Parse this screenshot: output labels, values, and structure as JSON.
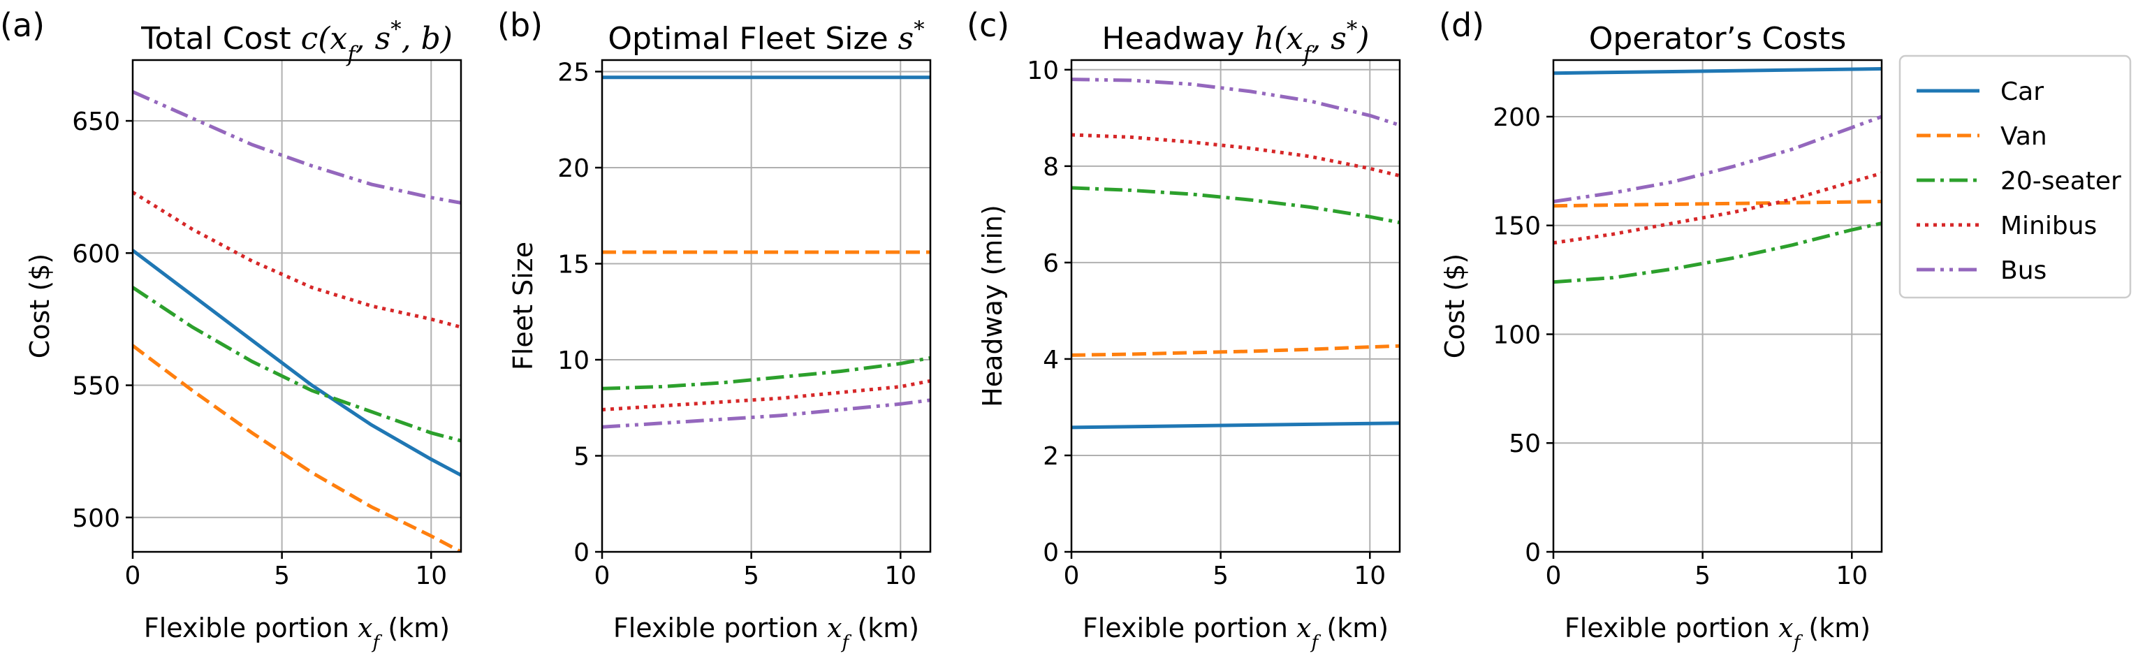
{
  "legend": {
    "placement": "right",
    "entries": [
      {
        "name": "Car",
        "color": "#1f77b4",
        "dash": "solid"
      },
      {
        "name": "Van",
        "color": "#ff7f0e",
        "dash": "dashed"
      },
      {
        "name": "20-seater",
        "color": "#2ca02c",
        "dash": "dashdot"
      },
      {
        "name": "Minibus",
        "color": "#d62728",
        "dash": "dotted"
      },
      {
        "name": "Bus",
        "color": "#9467bd",
        "dash": "dashdotdot"
      }
    ]
  },
  "chart_data": [
    {
      "type": "line",
      "panel": "(a)",
      "title_text": "Total Cost ",
      "title_math": "c(x_f, s*, b)",
      "xlabel_text": "Flexible portion ",
      "xlabel_math": "x_f",
      "xlabel_unit": " (km)",
      "ylabel": "Cost ($)",
      "xlim": [
        0,
        11
      ],
      "ylim": [
        487,
        673
      ],
      "xticks": [
        0,
        5,
        10
      ],
      "yticks": [
        500,
        550,
        600,
        650
      ],
      "grid": true,
      "series": [
        {
          "name": "Car",
          "x": [
            0,
            2,
            4,
            6,
            8,
            10,
            11
          ],
          "values": [
            601,
            584,
            567,
            550,
            535,
            522,
            516
          ]
        },
        {
          "name": "Van",
          "x": [
            0,
            2,
            4,
            6,
            8,
            10,
            11
          ],
          "values": [
            565,
            548,
            532,
            517,
            504,
            493,
            487
          ]
        },
        {
          "name": "20-seater",
          "x": [
            0,
            2,
            4,
            6,
            8,
            10,
            11
          ],
          "values": [
            587,
            572,
            559,
            548,
            540,
            532,
            529
          ]
        },
        {
          "name": "Minibus",
          "x": [
            0,
            2,
            4,
            6,
            8,
            10,
            11
          ],
          "values": [
            623,
            609,
            597,
            587,
            580,
            575,
            572
          ]
        },
        {
          "name": "Bus",
          "x": [
            0,
            2,
            4,
            6,
            8,
            10,
            11
          ],
          "values": [
            661,
            651,
            641,
            633,
            626,
            621,
            619
          ]
        }
      ]
    },
    {
      "type": "line",
      "panel": "(b)",
      "title_text": "Optimal Fleet Size ",
      "title_math": "s*",
      "xlabel_text": "Flexible portion ",
      "xlabel_math": "x_f",
      "xlabel_unit": " (km)",
      "ylabel": "Fleet Size",
      "xlim": [
        0,
        11
      ],
      "ylim": [
        0,
        25.6
      ],
      "xticks": [
        0,
        5,
        10
      ],
      "yticks": [
        0,
        5,
        10,
        15,
        20,
        25
      ],
      "grid": true,
      "series": [
        {
          "name": "Car",
          "x": [
            0,
            11
          ],
          "values": [
            24.7,
            24.7
          ]
        },
        {
          "name": "Van",
          "x": [
            0,
            11
          ],
          "values": [
            15.6,
            15.6
          ]
        },
        {
          "name": "20-seater",
          "x": [
            0,
            2,
            4,
            6,
            8,
            10,
            11
          ],
          "values": [
            8.5,
            8.6,
            8.8,
            9.1,
            9.4,
            9.8,
            10.1
          ]
        },
        {
          "name": "Minibus",
          "x": [
            0,
            2,
            4,
            6,
            8,
            10,
            11
          ],
          "values": [
            7.4,
            7.6,
            7.8,
            8.0,
            8.3,
            8.6,
            8.9
          ]
        },
        {
          "name": "Bus",
          "x": [
            0,
            2,
            4,
            6,
            8,
            10,
            11
          ],
          "values": [
            6.5,
            6.7,
            6.9,
            7.1,
            7.4,
            7.7,
            7.9
          ]
        }
      ]
    },
    {
      "type": "line",
      "panel": "(c)",
      "title_text": "Headway ",
      "title_math": "h(x_f, s*)",
      "xlabel_text": "Flexible portion ",
      "xlabel_math": "x_f",
      "xlabel_unit": " (km)",
      "ylabel": "Headway (min)",
      "xlim": [
        0,
        11
      ],
      "ylim": [
        0,
        10.2
      ],
      "xticks": [
        0,
        5,
        10
      ],
      "yticks": [
        0,
        2,
        4,
        6,
        8,
        10
      ],
      "grid": true,
      "series": [
        {
          "name": "Car",
          "x": [
            0,
            11
          ],
          "values": [
            2.58,
            2.67
          ]
        },
        {
          "name": "Van",
          "x": [
            0,
            2,
            4,
            6,
            8,
            10,
            11
          ],
          "values": [
            4.08,
            4.1,
            4.13,
            4.16,
            4.2,
            4.25,
            4.27
          ]
        },
        {
          "name": "20-seater",
          "x": [
            0,
            2,
            4,
            6,
            8,
            10,
            11
          ],
          "values": [
            7.55,
            7.5,
            7.42,
            7.3,
            7.15,
            6.95,
            6.83
          ]
        },
        {
          "name": "Minibus",
          "x": [
            0,
            2,
            4,
            6,
            8,
            10,
            11
          ],
          "values": [
            8.65,
            8.6,
            8.5,
            8.37,
            8.2,
            7.95,
            7.8
          ]
        },
        {
          "name": "Bus",
          "x": [
            0,
            2,
            4,
            6,
            8,
            10,
            11
          ],
          "values": [
            9.8,
            9.78,
            9.7,
            9.55,
            9.35,
            9.05,
            8.85
          ]
        }
      ]
    },
    {
      "type": "line",
      "panel": "(d)",
      "title_text": "Operator’s Costs",
      "title_math": "",
      "xlabel_text": "Flexible portion ",
      "xlabel_math": "x_f",
      "xlabel_unit": " (km)",
      "ylabel": "Cost ($)",
      "xlim": [
        0,
        11
      ],
      "ylim": [
        0,
        226
      ],
      "xticks": [
        0,
        5,
        10
      ],
      "yticks": [
        0,
        50,
        100,
        150,
        200
      ],
      "grid": true,
      "series": [
        {
          "name": "Car",
          "x": [
            0,
            11
          ],
          "values": [
            220,
            222
          ]
        },
        {
          "name": "Van",
          "x": [
            0,
            11
          ],
          "values": [
            159,
            161
          ]
        },
        {
          "name": "20-seater",
          "x": [
            0,
            2,
            4,
            6,
            8,
            10,
            11
          ],
          "values": [
            124,
            126,
            130,
            135,
            141,
            148,
            151
          ]
        },
        {
          "name": "Minibus",
          "x": [
            0,
            2,
            4,
            6,
            8,
            10,
            11
          ],
          "values": [
            142,
            146,
            151,
            156,
            162,
            170,
            174
          ]
        },
        {
          "name": "Bus",
          "x": [
            0,
            2,
            4,
            6,
            8,
            10,
            11
          ],
          "values": [
            161,
            165,
            170,
            177,
            185,
            195,
            200
          ]
        }
      ]
    }
  ]
}
